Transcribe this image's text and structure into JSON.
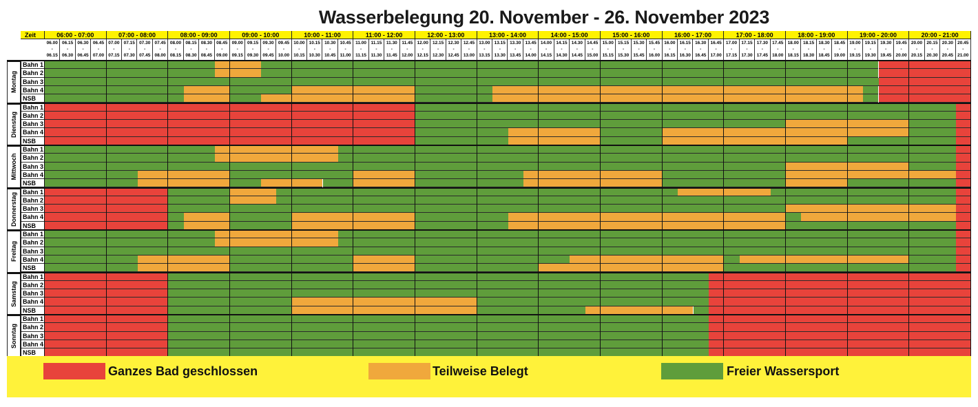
{
  "title": "Wasserbelegung 20. November - 26. November 2023",
  "colors": {
    "geschlossen": "#e8433b",
    "teilweise": "#f0a83c",
    "frei": "#5f9d3b",
    "yellow": "#fff23a"
  },
  "header": {
    "zeit_label": "Zeit",
    "hours": [
      "06:00 - 07:00",
      "07:00 - 08:00",
      "08:00 - 09:00",
      "09:00 - 10:00",
      "10:00 - 11:00",
      "11:00 - 12:00",
      "12:00 - 13:00",
      "13:00 - 14:00",
      "14:00 - 15:00",
      "15:00 - 16:00",
      "16:00 - 17:00",
      "17:00 - 18:00",
      "18:00 - 19:00",
      "19:00 - 20:00",
      "20:00 - 21:00"
    ],
    "slot_separator": "-",
    "slots": [
      [
        "06.00",
        "06.15"
      ],
      [
        "06.15",
        "06.30"
      ],
      [
        "06.30",
        "06.45"
      ],
      [
        "06.45",
        "07.00"
      ],
      [
        "07.00",
        "07.15"
      ],
      [
        "07.15",
        "07.30"
      ],
      [
        "07.30",
        "07.45"
      ],
      [
        "07.45",
        "08.00"
      ],
      [
        "08.00",
        "08.15"
      ],
      [
        "08.15",
        "08.30"
      ],
      [
        "08.30",
        "08.45"
      ],
      [
        "08.45",
        "09.00"
      ],
      [
        "09.00",
        "09.15"
      ],
      [
        "09.15",
        "09.30"
      ],
      [
        "09.30",
        "09.45"
      ],
      [
        "09.45",
        "10.00"
      ],
      [
        "10.00",
        "10.15"
      ],
      [
        "10.15",
        "10.30"
      ],
      [
        "10.30",
        "10.45"
      ],
      [
        "10.45",
        "11.00"
      ],
      [
        "11.00",
        "11.15"
      ],
      [
        "11.15",
        "11.30"
      ],
      [
        "11.30",
        "11.45"
      ],
      [
        "11.45",
        "12.00"
      ],
      [
        "12.00",
        "12.15"
      ],
      [
        "12.15",
        "12.30"
      ],
      [
        "12.30",
        "12.45"
      ],
      [
        "12.45",
        "13.00"
      ],
      [
        "13.00",
        "13.15"
      ],
      [
        "13.15",
        "13.30"
      ],
      [
        "13.30",
        "13.45"
      ],
      [
        "13.45",
        "14.00"
      ],
      [
        "14.00",
        "14.15"
      ],
      [
        "14.15",
        "14.30"
      ],
      [
        "14.30",
        "14.45"
      ],
      [
        "14.45",
        "15.00"
      ],
      [
        "15.00",
        "15.15"
      ],
      [
        "15.15",
        "15.30"
      ],
      [
        "15.30",
        "15.45"
      ],
      [
        "15.45",
        "16.00"
      ],
      [
        "16.00",
        "16.15"
      ],
      [
        "16.15",
        "16.30"
      ],
      [
        "16.30",
        "16.45"
      ],
      [
        "16.45",
        "17.00"
      ],
      [
        "17.00",
        "17.15"
      ],
      [
        "17.15",
        "17.30"
      ],
      [
        "17.30",
        "17.45"
      ],
      [
        "17.45",
        "18.00"
      ],
      [
        "18.00",
        "18.15"
      ],
      [
        "18.15",
        "18.30"
      ],
      [
        "18.30",
        "18.45"
      ],
      [
        "18.45",
        "19.00"
      ],
      [
        "19.00",
        "19.15"
      ],
      [
        "19.15",
        "19.30"
      ],
      [
        "19.30",
        "19.45"
      ],
      [
        "19.45",
        "20.00"
      ],
      [
        "20.00",
        "20.15"
      ],
      [
        "20.15",
        "20.30"
      ],
      [
        "20.30",
        "20.45"
      ],
      [
        "20.45",
        "21.00"
      ]
    ]
  },
  "default_status": "frei",
  "days": [
    {
      "name": "Montag",
      "lanes": [
        {
          "label": "Bahn 1",
          "segments": [
            [
              "teilweise",
              "08:45",
              "09:30"
            ],
            [
              "geschlossen",
              "19:30",
              "21:00"
            ]
          ]
        },
        {
          "label": "Bahn 2",
          "segments": [
            [
              "teilweise",
              "08:45",
              "09:30"
            ],
            [
              "geschlossen",
              "19:30",
              "21:00"
            ]
          ]
        },
        {
          "label": "Bahn 3",
          "segments": [
            [
              "geschlossen",
              "19:30",
              "21:00"
            ]
          ]
        },
        {
          "label": "Bahn 4",
          "segments": [
            [
              "teilweise",
              "08:15",
              "09:00"
            ],
            [
              "teilweise",
              "10:00",
              "12:00"
            ],
            [
              "teilweise",
              "13:15",
              "19:15"
            ],
            [
              "geschlossen",
              "19:30",
              "21:00"
            ]
          ]
        },
        {
          "label": "NSB",
          "segments": [
            [
              "teilweise",
              "08:15",
              "09:00"
            ],
            [
              "teilweise",
              "09:30",
              "12:00"
            ],
            [
              "teilweise",
              "13:15",
              "19:15"
            ],
            [
              "geschlossen",
              "19:30",
              "21:00"
            ]
          ]
        }
      ]
    },
    {
      "name": "Dienstag",
      "lanes": [
        {
          "label": "Bahn 1",
          "segments": [
            [
              "geschlossen",
              "06:00",
              "12:00"
            ],
            [
              "geschlossen",
              "20:45",
              "21:00"
            ]
          ]
        },
        {
          "label": "Bahn 2",
          "segments": [
            [
              "geschlossen",
              "06:00",
              "12:00"
            ],
            [
              "geschlossen",
              "20:45",
              "21:00"
            ]
          ]
        },
        {
          "label": "Bahn 3",
          "segments": [
            [
              "geschlossen",
              "06:00",
              "12:00"
            ],
            [
              "teilweise",
              "18:00",
              "20:00"
            ],
            [
              "geschlossen",
              "20:45",
              "21:00"
            ]
          ]
        },
        {
          "label": "Bahn 4",
          "segments": [
            [
              "geschlossen",
              "06:00",
              "12:00"
            ],
            [
              "teilweise",
              "13:30",
              "15:00"
            ],
            [
              "teilweise",
              "16:00",
              "20:00"
            ],
            [
              "geschlossen",
              "20:45",
              "21:00"
            ]
          ]
        },
        {
          "label": "NSB",
          "segments": [
            [
              "geschlossen",
              "06:00",
              "12:00"
            ],
            [
              "teilweise",
              "13:30",
              "15:00"
            ],
            [
              "teilweise",
              "16:00",
              "19:00"
            ],
            [
              "geschlossen",
              "20:45",
              "21:00"
            ]
          ]
        }
      ]
    },
    {
      "name": "Mittwoch",
      "lanes": [
        {
          "label": "Bahn 1",
          "segments": [
            [
              "teilweise",
              "08:45",
              "10:45"
            ],
            [
              "geschlossen",
              "20:45",
              "21:00"
            ]
          ]
        },
        {
          "label": "Bahn 2",
          "segments": [
            [
              "teilweise",
              "08:45",
              "10:45"
            ],
            [
              "geschlossen",
              "20:45",
              "21:00"
            ]
          ]
        },
        {
          "label": "Bahn 3",
          "segments": [
            [
              "teilweise",
              "18:00",
              "20:00"
            ],
            [
              "geschlossen",
              "20:45",
              "21:00"
            ]
          ]
        },
        {
          "label": "Bahn 4",
          "segments": [
            [
              "teilweise",
              "07:30",
              "09:00"
            ],
            [
              "teilweise",
              "11:00",
              "12:00"
            ],
            [
              "teilweise",
              "13:45",
              "16:00"
            ],
            [
              "teilweise",
              "18:00",
              "20:45"
            ],
            [
              "geschlossen",
              "20:45",
              "21:00"
            ]
          ]
        },
        {
          "label": "NSB",
          "segments": [
            [
              "teilweise",
              "07:30",
              "09:00"
            ],
            [
              "teilweise",
              "09:30",
              "10:30"
            ],
            [
              "teilweise",
              "11:00",
              "12:00"
            ],
            [
              "teilweise",
              "13:45",
              "16:00"
            ],
            [
              "teilweise",
              "18:00",
              "19:00"
            ],
            [
              "geschlossen",
              "20:45",
              "21:00"
            ]
          ]
        }
      ]
    },
    {
      "name": "Donnerstag",
      "lanes": [
        {
          "label": "Bahn 1",
          "segments": [
            [
              "geschlossen",
              "06:00",
              "08:00"
            ],
            [
              "teilweise",
              "09:00",
              "09:45"
            ],
            [
              "teilweise",
              "16:15",
              "17:45"
            ],
            [
              "geschlossen",
              "20:45",
              "21:00"
            ]
          ]
        },
        {
          "label": "Bahn 2",
          "segments": [
            [
              "geschlossen",
              "06:00",
              "08:00"
            ],
            [
              "teilweise",
              "09:00",
              "09:45"
            ],
            [
              "geschlossen",
              "20:45",
              "21:00"
            ]
          ]
        },
        {
          "label": "Bahn 3",
          "segments": [
            [
              "geschlossen",
              "06:00",
              "08:00"
            ],
            [
              "teilweise",
              "18:00",
              "20:45"
            ],
            [
              "geschlossen",
              "20:45",
              "21:00"
            ]
          ]
        },
        {
          "label": "Bahn 4",
          "segments": [
            [
              "geschlossen",
              "06:00",
              "08:00"
            ],
            [
              "teilweise",
              "08:15",
              "09:00"
            ],
            [
              "teilweise",
              "10:00",
              "12:00"
            ],
            [
              "teilweise",
              "13:30",
              "18:00"
            ],
            [
              "teilweise",
              "18:15",
              "20:45"
            ],
            [
              "geschlossen",
              "20:45",
              "21:00"
            ]
          ]
        },
        {
          "label": "NSB",
          "segments": [
            [
              "geschlossen",
              "06:00",
              "08:00"
            ],
            [
              "teilweise",
              "08:15",
              "09:00"
            ],
            [
              "teilweise",
              "10:00",
              "12:00"
            ],
            [
              "teilweise",
              "13:30",
              "18:00"
            ],
            [
              "geschlossen",
              "20:45",
              "21:00"
            ]
          ]
        }
      ]
    },
    {
      "name": "Freitag",
      "lanes": [
        {
          "label": "Bahn 1",
          "segments": [
            [
              "teilweise",
              "08:45",
              "10:45"
            ],
            [
              "geschlossen",
              "20:45",
              "21:00"
            ]
          ]
        },
        {
          "label": "Bahn 2",
          "segments": [
            [
              "teilweise",
              "08:45",
              "10:45"
            ],
            [
              "geschlossen",
              "20:45",
              "21:00"
            ]
          ]
        },
        {
          "label": "Bahn 3",
          "segments": [
            [
              "geschlossen",
              "20:45",
              "21:00"
            ]
          ]
        },
        {
          "label": "Bahn 4",
          "segments": [
            [
              "teilweise",
              "07:30",
              "09:00"
            ],
            [
              "teilweise",
              "11:00",
              "12:00"
            ],
            [
              "teilweise",
              "14:30",
              "17:00"
            ],
            [
              "teilweise",
              "17:15",
              "20:00"
            ],
            [
              "geschlossen",
              "20:45",
              "21:00"
            ]
          ]
        },
        {
          "label": "NSB",
          "segments": [
            [
              "teilweise",
              "07:30",
              "09:00"
            ],
            [
              "teilweise",
              "11:00",
              "12:00"
            ],
            [
              "teilweise",
              "14:00",
              "17:00"
            ],
            [
              "geschlossen",
              "20:45",
              "21:00"
            ]
          ]
        }
      ]
    },
    {
      "name": "Samstag",
      "lanes": [
        {
          "label": "Bahn 1",
          "segments": [
            [
              "geschlossen",
              "06:00",
              "08:00"
            ],
            [
              "geschlossen",
              "16:45",
              "21:00"
            ]
          ]
        },
        {
          "label": "Bahn 2",
          "segments": [
            [
              "geschlossen",
              "06:00",
              "08:00"
            ],
            [
              "geschlossen",
              "16:45",
              "21:00"
            ]
          ]
        },
        {
          "label": "Bahn 3",
          "segments": [
            [
              "geschlossen",
              "06:00",
              "08:00"
            ],
            [
              "geschlossen",
              "16:45",
              "21:00"
            ]
          ]
        },
        {
          "label": "Bahn 4",
          "segments": [
            [
              "geschlossen",
              "06:00",
              "08:00"
            ],
            [
              "teilweise",
              "10:00",
              "13:00"
            ],
            [
              "geschlossen",
              "16:45",
              "21:00"
            ]
          ]
        },
        {
          "label": "NSB",
          "segments": [
            [
              "geschlossen",
              "06:00",
              "08:00"
            ],
            [
              "teilweise",
              "10:00",
              "13:00"
            ],
            [
              "teilweise",
              "14:45",
              "16:30"
            ],
            [
              "geschlossen",
              "16:45",
              "21:00"
            ]
          ]
        }
      ]
    },
    {
      "name": "Sonntag",
      "lanes": [
        {
          "label": "Bahn 1",
          "segments": [
            [
              "geschlossen",
              "06:00",
              "08:00"
            ],
            [
              "geschlossen",
              "16:45",
              "21:00"
            ]
          ]
        },
        {
          "label": "Bahn 2",
          "segments": [
            [
              "geschlossen",
              "06:00",
              "08:00"
            ],
            [
              "geschlossen",
              "16:45",
              "21:00"
            ]
          ]
        },
        {
          "label": "Bahn 3",
          "segments": [
            [
              "geschlossen",
              "06:00",
              "08:00"
            ],
            [
              "geschlossen",
              "16:45",
              "21:00"
            ]
          ]
        },
        {
          "label": "Bahn 4",
          "segments": [
            [
              "geschlossen",
              "06:00",
              "08:00"
            ],
            [
              "geschlossen",
              "16:45",
              "21:00"
            ]
          ]
        },
        {
          "label": "NSB",
          "segments": [
            [
              "geschlossen",
              "06:00",
              "08:00"
            ],
            [
              "geschlossen",
              "16:45",
              "21:00"
            ]
          ]
        }
      ]
    }
  ],
  "legend": [
    {
      "status": "geschlossen",
      "label": "Ganzes Bad geschlossen"
    },
    {
      "status": "teilweise",
      "label": "Teilweise Belegt"
    },
    {
      "status": "frei",
      "label": "Freier Wassersport"
    }
  ]
}
